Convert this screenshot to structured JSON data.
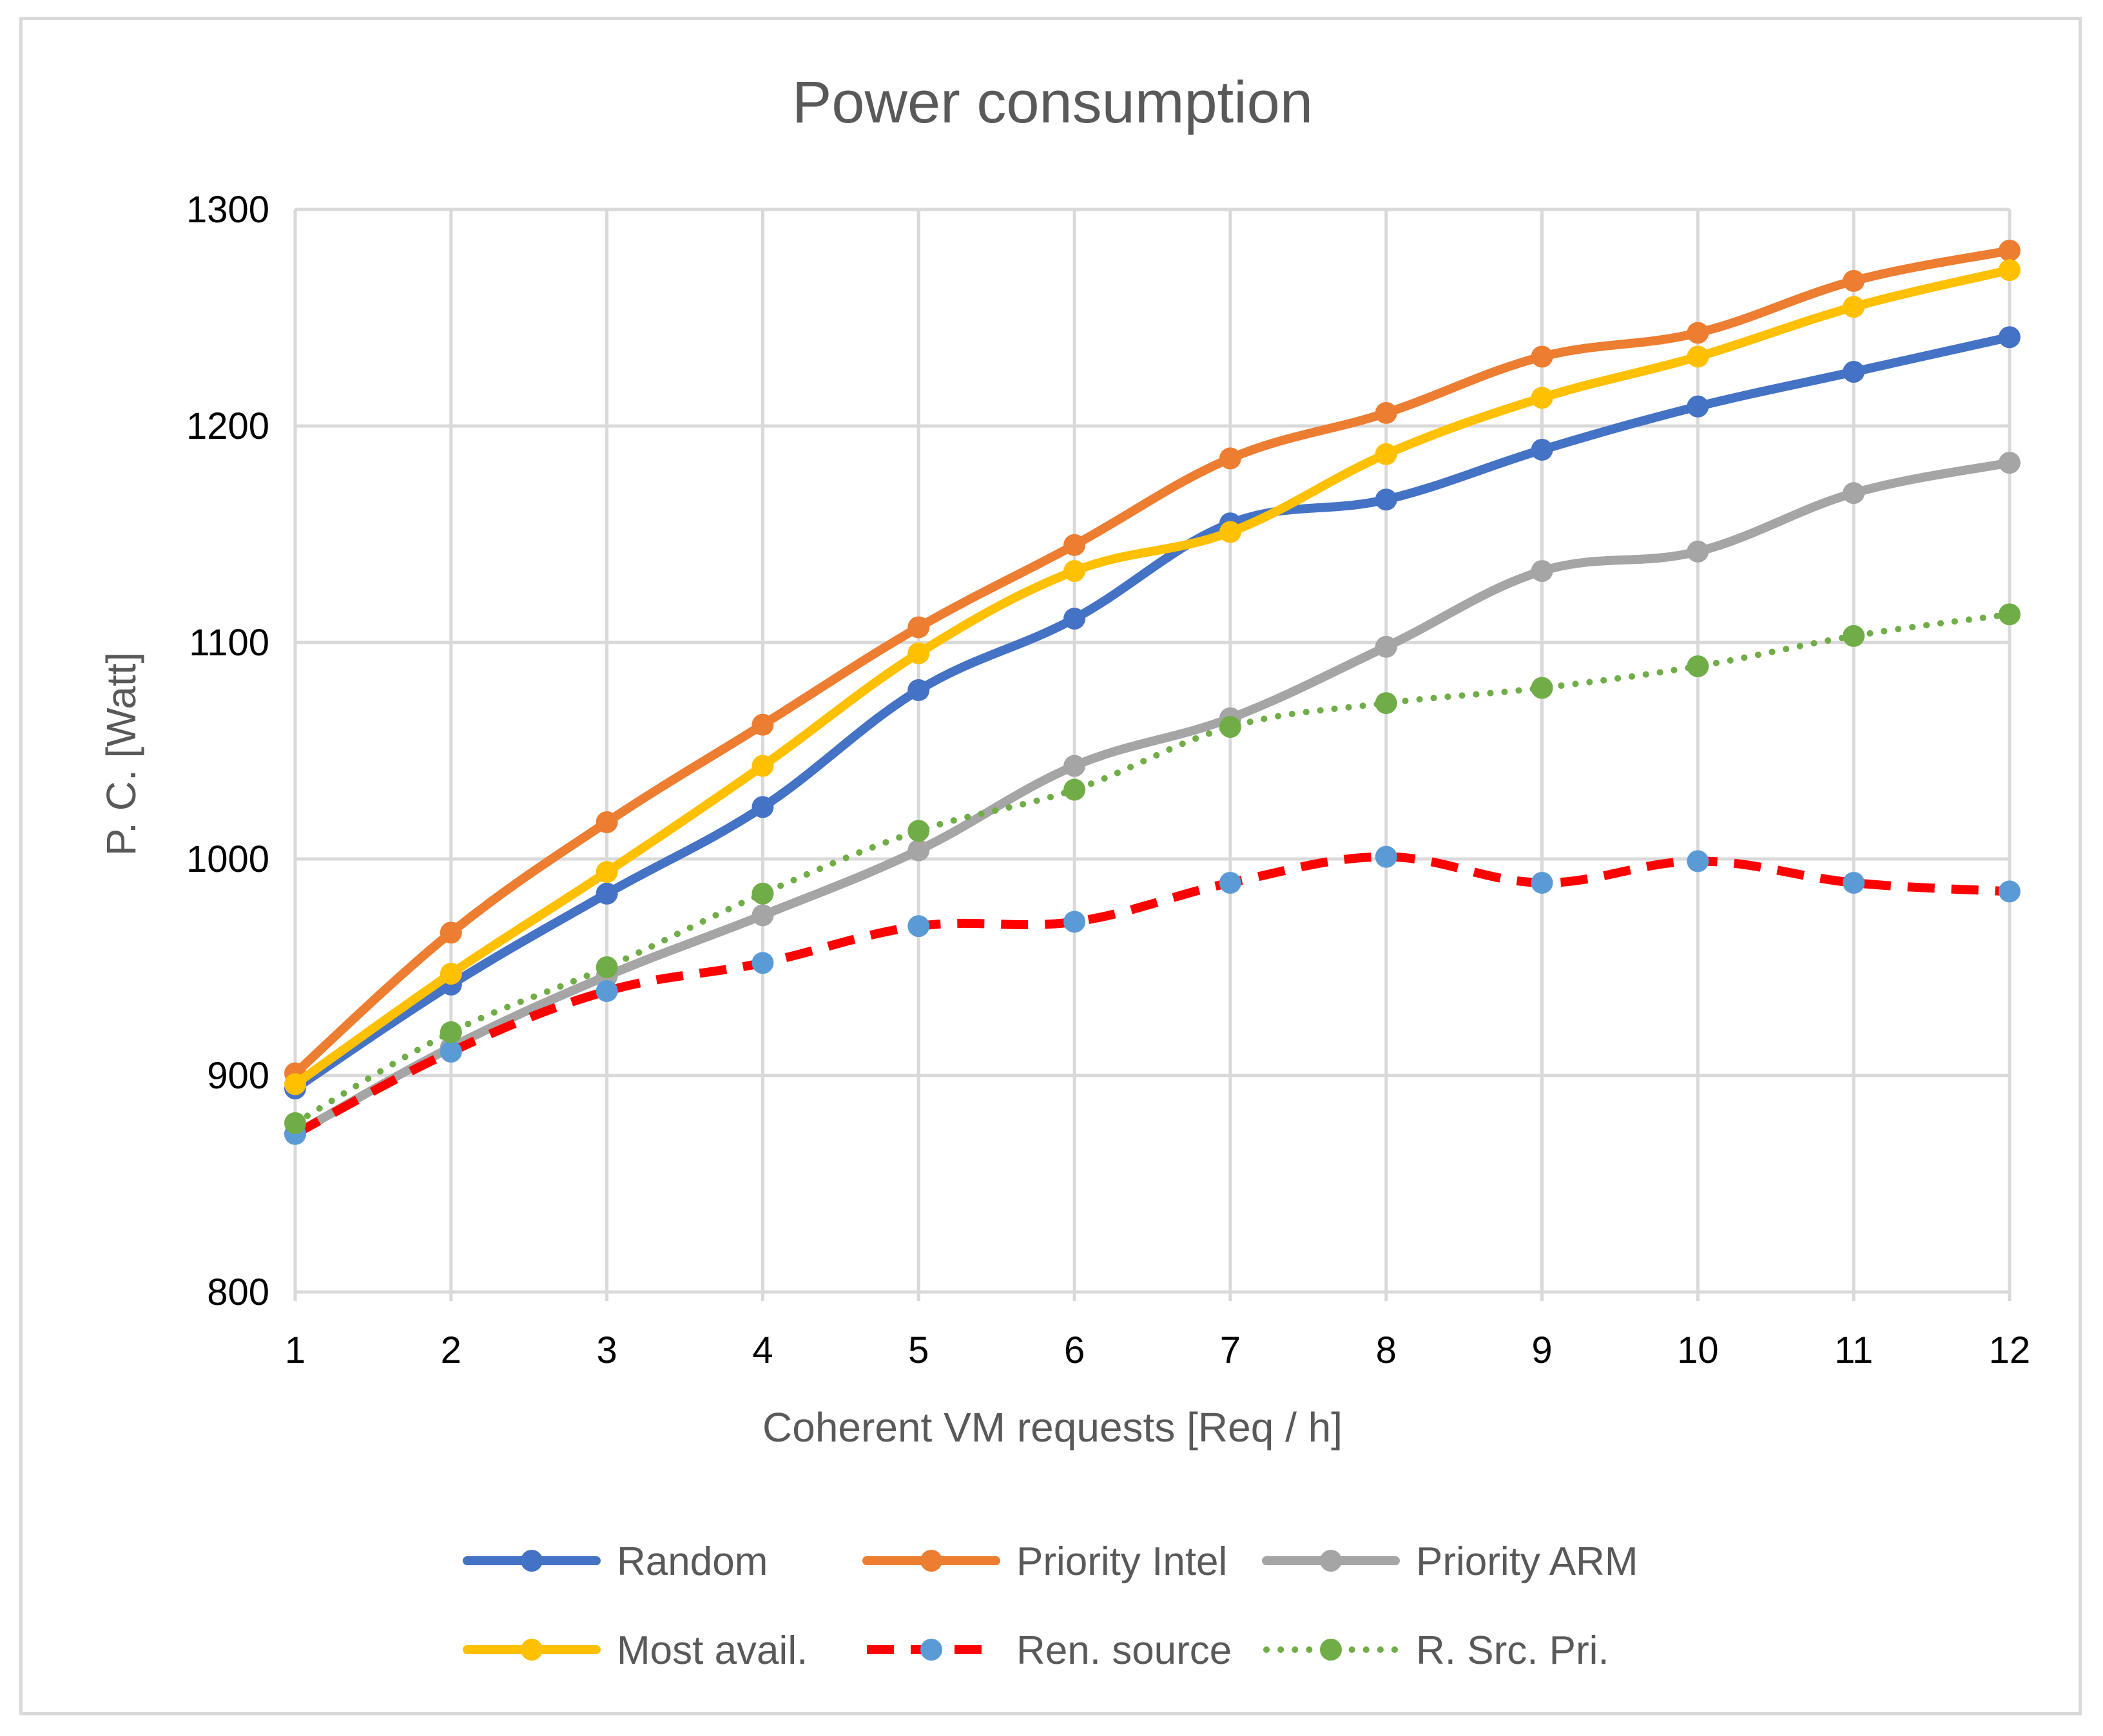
{
  "chart_data": {
    "type": "line",
    "title": "Power consumption",
    "xlabel": "Coherent  VM requests [Req / h]",
    "ylabel": "P. C. [Watt]",
    "x": [
      1,
      2,
      3,
      4,
      5,
      6,
      7,
      8,
      9,
      10,
      11,
      12
    ],
    "x_tick_labels": [
      "1",
      "2",
      "3",
      "4",
      "5",
      "6",
      "7",
      "8",
      "9",
      "10",
      "11",
      "12"
    ],
    "ylim": [
      800,
      1300
    ],
    "y_ticks": [
      800,
      900,
      1000,
      1100,
      1200,
      1300
    ],
    "y_tick_labels": [
      "800",
      "900",
      "1000",
      "1100",
      "1200",
      "1300"
    ],
    "grid": true,
    "legend_position": "bottom",
    "series": [
      {
        "name": "Random",
        "color": "#4472c4",
        "line_style": "solid",
        "marker_color": "#4472c4",
        "values": [
          894,
          942,
          984,
          1024,
          1078,
          1111,
          1155,
          1166,
          1189,
          1209,
          1225,
          1241
        ]
      },
      {
        "name": "Priority Intel",
        "color": "#ed7d31",
        "line_style": "solid",
        "marker_color": "#ed7d31",
        "values": [
          901,
          966,
          1017,
          1062,
          1107,
          1145,
          1185,
          1206,
          1232,
          1243,
          1267,
          1281
        ]
      },
      {
        "name": "Priority ARM",
        "color": "#a5a5a5",
        "line_style": "solid",
        "marker_color": "#a5a5a5",
        "values": [
          873,
          913,
          946,
          974,
          1004,
          1043,
          1065,
          1098,
          1133,
          1142,
          1169,
          1183
        ]
      },
      {
        "name": "Most avail.",
        "color": "#ffc000",
        "line_style": "solid",
        "marker_color": "#ffc000",
        "values": [
          896,
          947,
          994,
          1043,
          1095,
          1133,
          1151,
          1187,
          1213,
          1232,
          1255,
          1272
        ]
      },
      {
        "name": "Ren. source",
        "color": "#ff0000",
        "line_style": "dashed",
        "marker_color": "#5b9bd5",
        "values": [
          873,
          911,
          939,
          952,
          969,
          971,
          989,
          1001,
          989,
          999,
          989,
          985
        ]
      },
      {
        "name": "R. Src. Pri.",
        "color": "#70ad47",
        "line_style": "dotted",
        "marker_color": "#70ad47",
        "values": [
          878,
          920,
          950,
          984,
          1013,
          1032,
          1061,
          1072,
          1079,
          1089,
          1103,
          1113
        ]
      }
    ]
  }
}
